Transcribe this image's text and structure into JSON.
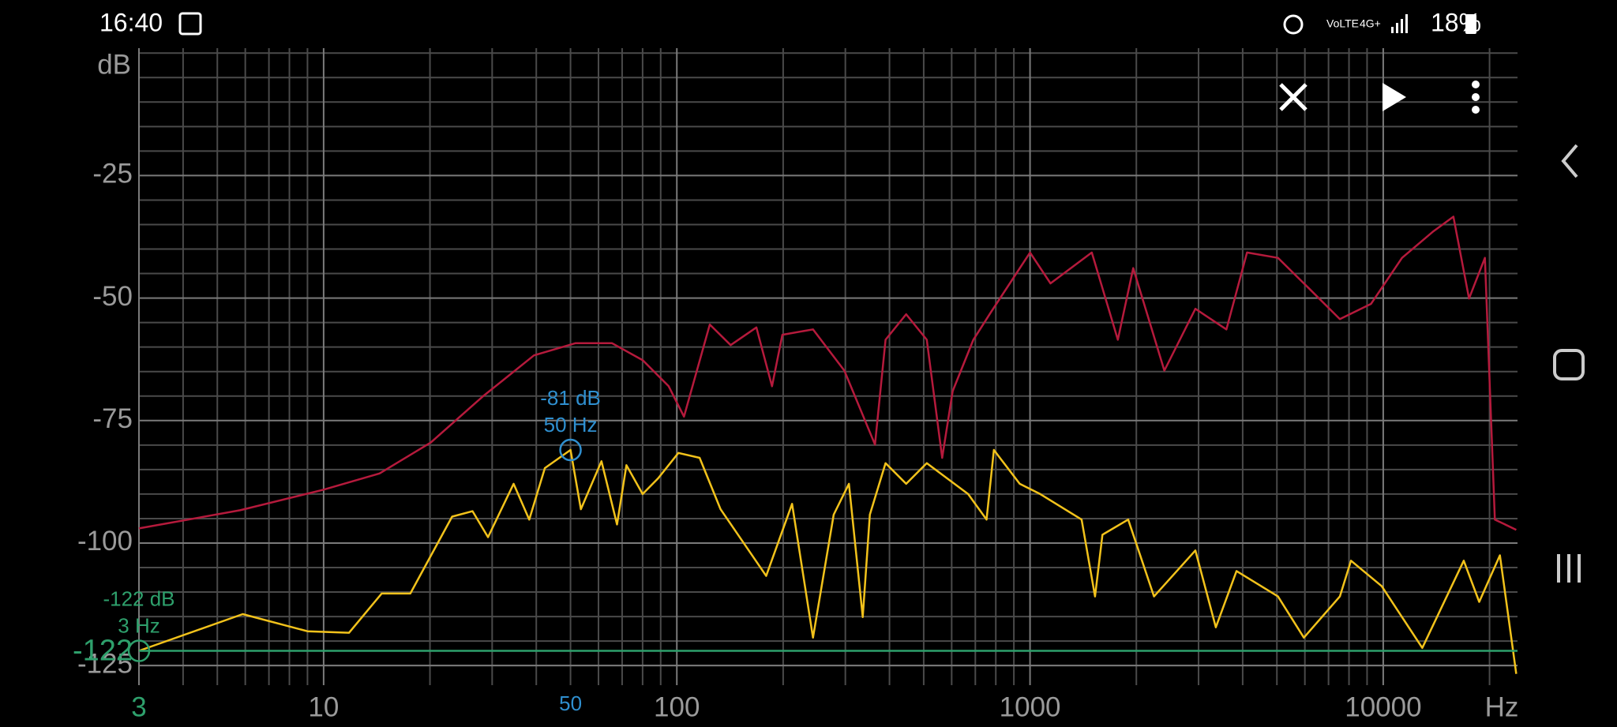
{
  "status_bar": {
    "time": "16:40",
    "battery": "18%"
  },
  "chart_data": {
    "type": "line",
    "x_label": "Hz",
    "y_label": "dB",
    "x_scale": "log",
    "grid": true,
    "xlim": [
      3,
      24000
    ],
    "ylim": [
      -129,
      1
    ],
    "xticks": [
      10,
      100,
      1000,
      10000
    ],
    "yticks": [
      -125,
      -100,
      -75,
      -50,
      -25
    ],
    "x_grid": [
      3,
      4,
      5,
      6,
      7,
      8,
      9,
      20,
      30,
      40,
      50,
      60,
      70,
      80,
      90,
      200,
      300,
      400,
      500,
      600,
      700,
      800,
      900,
      2000,
      3000,
      4000,
      5000,
      6000,
      7000,
      8000,
      9000,
      20000
    ],
    "y_grid": [
      -125,
      -120,
      -115,
      -110,
      -105,
      -95,
      -90,
      -85,
      -80,
      -70,
      -65,
      -60,
      -55,
      -45,
      -40,
      -35,
      -30,
      -20,
      -15,
      -10,
      -5,
      0
    ],
    "tick_color": "#9a9a9a",
    "grid_color": "#4a4a4a",
    "major_grid_color": "#7a7a7a",
    "series": [
      {
        "color": "#b51a3c",
        "x": [
          3,
          5.8,
          10,
          14.4,
          20.1,
          28.2,
          39.4,
          51.7,
          65.5,
          80.1,
          94.8,
          104.8,
          124,
          142,
          168,
          186,
          199,
          243,
          298,
          364,
          390,
          446,
          510,
          564,
          604,
          691,
          773,
          1000,
          1143,
          1496,
          1773,
          1960,
          2400,
          2938,
          3597,
          4115,
          5036,
          6158,
          7539,
          9230,
          11300,
          13800,
          15800,
          17500,
          19400,
          20700,
          23800
        ],
        "values": [
          -97,
          -93.3,
          -89.1,
          -85.8,
          -79.5,
          -70.1,
          -61.7,
          -59.2,
          -59.2,
          -62.7,
          -68,
          -74.2,
          -55.4,
          -59.6,
          -56,
          -68,
          -57.5,
          -56.4,
          -64.8,
          -79.9,
          -58.5,
          -53.3,
          -58.5,
          -82.6,
          -69,
          -58.5,
          -53,
          -40.7,
          -47,
          -40.7,
          -58.5,
          -43.9,
          -64.8,
          -52.2,
          -56.4,
          -40.7,
          -41.8,
          -48,
          -54.3,
          -51.2,
          -41.8,
          -36.5,
          -33.4,
          -50.1,
          -41.8,
          -95.2,
          -97.3
        ]
      },
      {
        "color": "#f2c21b",
        "x": [
          3,
          5.9,
          9,
          11.8,
          14.6,
          17.6,
          23.1,
          26.4,
          29.2,
          34.5,
          38.2,
          42.3,
          50,
          53.5,
          61.2,
          67.7,
          72,
          80,
          88.5,
          101,
          116,
          133,
          179,
          212,
          243,
          278,
          307,
          336,
          352,
          390,
          446,
          510,
          668,
          753,
          790,
          935,
          1069,
          1400,
          1528,
          1603,
          1896,
          2244,
          2938,
          3357,
          3843,
          5036,
          5960,
          7539,
          8105,
          9900,
          12900,
          16900,
          18700,
          21400,
          23800
        ],
        "values": [
          -122,
          -114.5,
          -118,
          -118.3,
          -110.3,
          -110.3,
          -94.6,
          -93.5,
          -98.8,
          -87.9,
          -95.2,
          -84.7,
          -81,
          -93.1,
          -83.3,
          -96.2,
          -84.1,
          -90,
          -86.8,
          -81.6,
          -82.6,
          -93.1,
          -106.7,
          -92,
          -119.3,
          -94.2,
          -87.9,
          -115.1,
          -94.2,
          -83.7,
          -87.9,
          -83.7,
          -90,
          -95.2,
          -81,
          -87.9,
          -90,
          -95.2,
          -110.9,
          -98.3,
          -95.2,
          -110.9,
          -101.5,
          -117.2,
          -105.7,
          -110.9,
          -119.3,
          -110.9,
          -103.6,
          -108.8,
          -121.4,
          -103.6,
          -112,
          -102.5,
          -126.7
        ]
      }
    ],
    "markers": [
      {
        "x": 3,
        "y": -122,
        "color": "#2ea06c",
        "line": true,
        "label": [
          "-122 dB",
          "3 Hz"
        ]
      },
      {
        "x": 50,
        "y": -81,
        "color": "#2f8fcf",
        "line": false,
        "label": [
          "-81 dB",
          "50 Hz"
        ]
      }
    ]
  }
}
